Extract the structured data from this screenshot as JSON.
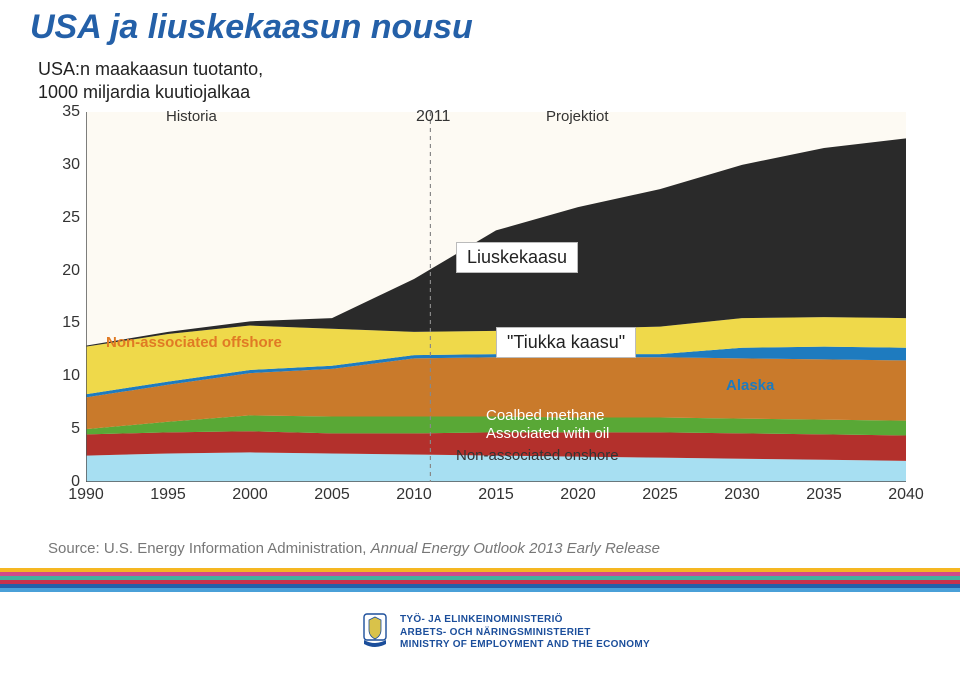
{
  "title": "USA ja liuskekaasun nousu",
  "subtitle_line1": "USA:n maakaasun tuotanto,",
  "subtitle_line2": "1000 miljardia kuutiojalkaa",
  "chart": {
    "type": "area",
    "xlim": [
      1990,
      2040
    ],
    "ylim": [
      0,
      35
    ],
    "ytick_step": 5,
    "yticks": [
      0,
      5,
      10,
      15,
      20,
      25,
      30,
      35
    ],
    "xticks": [
      1990,
      1995,
      2000,
      2005,
      2010,
      2015,
      2020,
      2025,
      2030,
      2035,
      2040
    ],
    "background_color": "#fdfaf3",
    "divider_year": 2011,
    "divider_label": "2011",
    "history_label": "Historia",
    "projection_label": "Projektiot",
    "series": [
      {
        "name": "Non-associated onshore",
        "color": "#a7dff2",
        "values": [
          2.5,
          2.7,
          2.8,
          2.7,
          2.6,
          2.5,
          2.4,
          2.3,
          2.2,
          2.1,
          2.0
        ]
      },
      {
        "name": "Associated with oil",
        "color": "#b3302c",
        "values": [
          2.0,
          2.0,
          2.0,
          1.9,
          2.0,
          2.2,
          2.3,
          2.4,
          2.4,
          2.4,
          2.4
        ]
      },
      {
        "name": "Coalbed methane",
        "color": "#59a836",
        "values": [
          0.5,
          1.0,
          1.5,
          1.6,
          1.6,
          1.5,
          1.4,
          1.4,
          1.4,
          1.4,
          1.4
        ]
      },
      {
        "name": "Tiukka kaasu",
        "color": "#c97a2b",
        "values": [
          3.0,
          3.5,
          4.0,
          4.5,
          5.5,
          5.6,
          5.7,
          5.7,
          5.7,
          5.7,
          5.7
        ]
      },
      {
        "name": "Alaska",
        "color": "#1e7bbf",
        "values": [
          0.3,
          0.3,
          0.3,
          0.3,
          0.3,
          0.3,
          0.3,
          0.3,
          1.0,
          1.2,
          1.2
        ]
      },
      {
        "name": "Non-associated offshore",
        "color": "#efd94a",
        "values": [
          4.5,
          4.5,
          4.2,
          3.5,
          2.2,
          2.2,
          2.4,
          2.6,
          2.8,
          2.8,
          2.8
        ]
      },
      {
        "name": "Liuskekaasu",
        "color": "#2a2a2a",
        "values": [
          0.1,
          0.2,
          0.4,
          1.0,
          5.0,
          9.5,
          11.5,
          13.0,
          14.5,
          16.0,
          17.0
        ]
      }
    ],
    "in_chart_labels": {
      "non_assoc_offshore": "Non-associated offshore",
      "coalbed": "Coalbed methane",
      "assoc_oil": "Associated with oil",
      "onshore": "Non-associated onshore",
      "alaska": "Alaska"
    },
    "box_labels": {
      "liuskekaasu": "Liuskekaasu",
      "tiukka": "\"Tiukka kaasu\""
    }
  },
  "source_prefix": "Source:  U.S. Energy Information Administration, ",
  "source_italic": "Annual Energy Outlook 2013 Early Release",
  "stripes": [
    "#f5b722",
    "#d14b88",
    "#44b29d",
    "#c8314b",
    "#2460a8",
    "#4aa0d8"
  ],
  "ministry": {
    "l1": "TYÖ- JA ELINKEINOMINISTERIÖ",
    "l2": "ARBETS- OCH NÄRINGSMINISTERIET",
    "l3": "MINISTRY OF EMPLOYMENT AND THE ECONOMY"
  }
}
